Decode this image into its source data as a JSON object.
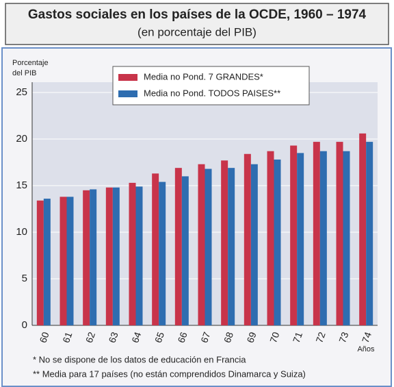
{
  "chart_data": {
    "type": "bar",
    "title": "Gastos sociales en los países de la OCDE, 1960 – 1974",
    "subtitle": "(en porcentaje del PIB)",
    "ylabel": [
      "Porcentaje",
      "del PIB"
    ],
    "xlabel": "Años",
    "categories": [
      "60",
      "61",
      "62",
      "63",
      "64",
      "65",
      "66",
      "67",
      "68",
      "69",
      "70",
      "71",
      "72",
      "73",
      "74"
    ],
    "series": [
      {
        "name": "Media no Pond. 7 GRANDES*",
        "color": "#c8344a",
        "values": [
          13.4,
          13.8,
          14.5,
          14.8,
          15.3,
          16.3,
          16.9,
          17.3,
          17.7,
          18.4,
          18.7,
          19.3,
          19.7,
          19.7,
          20.6
        ]
      },
      {
        "name": "Media no Pond. TODOS PAISES**",
        "color": "#2e6db0",
        "values": [
          13.6,
          13.8,
          14.6,
          14.8,
          14.9,
          15.4,
          16.0,
          16.8,
          16.9,
          17.3,
          17.8,
          18.5,
          18.7,
          18.7,
          19.7
        ]
      }
    ],
    "ylim": [
      0,
      25
    ],
    "yticks": [
      0,
      5,
      10,
      15,
      20,
      25
    ],
    "grid": true,
    "notes": [
      "* No se dispone de los datos de educación en Francia",
      "** Media para 17 países (no están comprendidos Dinamarca y Suiza)"
    ]
  }
}
